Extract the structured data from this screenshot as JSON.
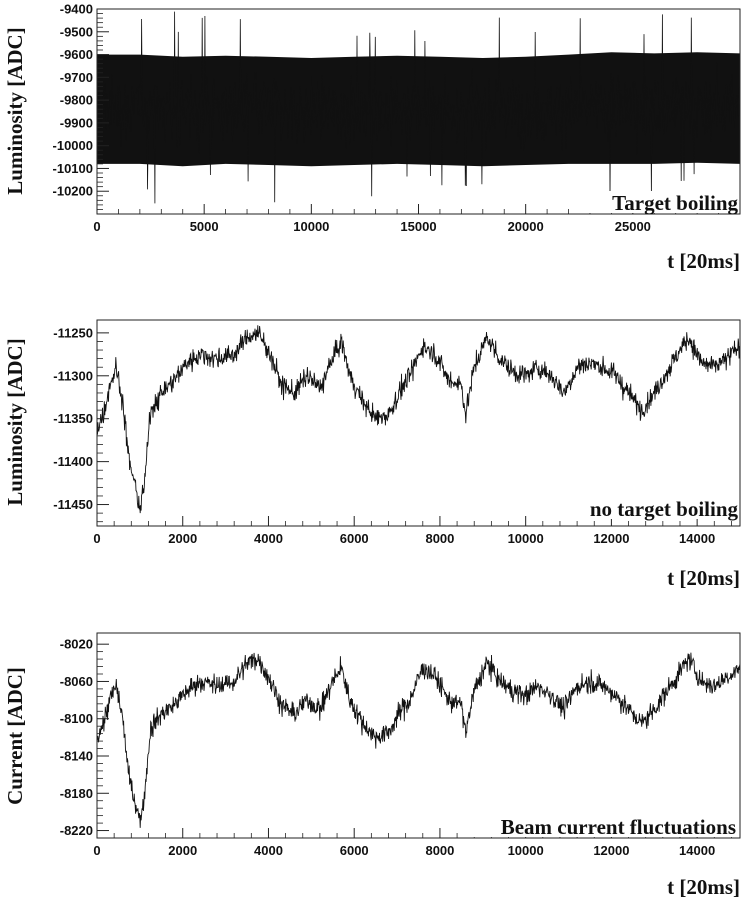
{
  "chart_data": [
    {
      "type": "line",
      "ylabel": "Luminosity [ADC]",
      "xlabel": "t [20ms]",
      "annotation": "Target boiling",
      "xlim": [
        0,
        30000
      ],
      "ylim": [
        -10300,
        -9400
      ],
      "xticks": [
        0,
        5000,
        10000,
        15000,
        20000,
        25000
      ],
      "xtick_labels": [
        "0",
        "5000",
        "10000",
        "15000",
        "20000",
        "25000"
      ],
      "yticks": [
        -9400,
        -9500,
        -9600,
        -9700,
        -9800,
        -9900,
        -10000,
        -10100,
        -10200
      ],
      "ytick_labels": [
        "-9400",
        "-9500",
        "-9600",
        "-9700",
        "-9800",
        "-9900",
        "-10000",
        "-10100",
        "-10200"
      ],
      "series": [
        {
          "x": [
            0,
            2000,
            4000,
            6000,
            8000,
            10000,
            12000,
            14000,
            16000,
            18000,
            20000,
            22000,
            24000,
            26000,
            28000,
            30000
          ],
          "mean": [
            -9830,
            -9835,
            -9840,
            -9835,
            -9840,
            -9845,
            -9840,
            -9835,
            -9840,
            -9845,
            -9840,
            -9835,
            -9830,
            -9835,
            -9830,
            -9835
          ],
          "band_low": [
            -10080,
            -10080,
            -10090,
            -10080,
            -10085,
            -10090,
            -10085,
            -10080,
            -10085,
            -10090,
            -10085,
            -10080,
            -10080,
            -10080,
            -10075,
            -10080
          ],
          "band_high": [
            -9600,
            -9600,
            -9610,
            -9605,
            -9610,
            -9615,
            -9610,
            -9605,
            -9610,
            -9615,
            -9610,
            -9600,
            -9590,
            -9595,
            -9590,
            -9595
          ]
        }
      ]
    },
    {
      "type": "line",
      "ylabel": "Luminosity [ADC]",
      "xlabel": "t [20ms]",
      "annotation": "no target boiling",
      "xlim": [
        0,
        15000
      ],
      "ylim": [
        -11475,
        -11235
      ],
      "xticks": [
        0,
        2000,
        4000,
        6000,
        8000,
        10000,
        12000,
        14000
      ],
      "xtick_labels": [
        "0",
        "2000",
        "4000",
        "6000",
        "8000",
        "10000",
        "12000",
        "14000"
      ],
      "yticks": [
        -11250,
        -11300,
        -11350,
        -11400,
        -11450
      ],
      "ytick_labels": [
        "-11250",
        "-11300",
        "-11350",
        "-11400",
        "-11450"
      ],
      "series": [
        {
          "x": [
            0,
            150,
            300,
            450,
            600,
            750,
            900,
            1000,
            1100,
            1250,
            1500,
            1800,
            2100,
            2400,
            2800,
            3200,
            3500,
            3750,
            4000,
            4300,
            4600,
            4900,
            5200,
            5500,
            5700,
            5900,
            6200,
            6500,
            6800,
            7100,
            7300,
            7600,
            7900,
            8200,
            8500,
            8600,
            8800,
            9100,
            9400,
            9700,
            10000,
            10300,
            10600,
            10900,
            11200,
            11500,
            11800,
            12100,
            12400,
            12700,
            13000,
            13300,
            13600,
            13800,
            14100,
            14400,
            14700,
            15000
          ],
          "values": [
            -11360,
            -11345,
            -11310,
            -11290,
            -11330,
            -11400,
            -11430,
            -11455,
            -11430,
            -11340,
            -11320,
            -11305,
            -11285,
            -11275,
            -11280,
            -11275,
            -11255,
            -11250,
            -11270,
            -11310,
            -11320,
            -11300,
            -11315,
            -11280,
            -11260,
            -11300,
            -11330,
            -11350,
            -11345,
            -11315,
            -11300,
            -11265,
            -11275,
            -11305,
            -11310,
            -11345,
            -11290,
            -11255,
            -11280,
            -11295,
            -11300,
            -11290,
            -11300,
            -11320,
            -11290,
            -11285,
            -11290,
            -11300,
            -11320,
            -11340,
            -11320,
            -11295,
            -11270,
            -11255,
            -11285,
            -11290,
            -11280,
            -11265
          ]
        }
      ]
    },
    {
      "type": "line",
      "ylabel": "Current [ADC]",
      "xlabel": "t [20ms]",
      "annotation": "Beam current fluctuations",
      "xlim": [
        0,
        15000
      ],
      "ylim": [
        -8228,
        -8008
      ],
      "xticks": [
        0,
        2000,
        4000,
        6000,
        8000,
        10000,
        12000,
        14000
      ],
      "xtick_labels": [
        "0",
        "2000",
        "4000",
        "6000",
        "8000",
        "10000",
        "12000",
        "14000"
      ],
      "yticks": [
        -8020,
        -8060,
        -8100,
        -8140,
        -8180,
        -8220
      ],
      "ytick_labels": [
        "-8020",
        "-8060",
        "-8100",
        "-8140",
        "-8180",
        "-8220"
      ],
      "series": [
        {
          "x": [
            0,
            150,
            300,
            450,
            600,
            750,
            900,
            1000,
            1100,
            1250,
            1500,
            1800,
            2100,
            2400,
            2800,
            3200,
            3500,
            3750,
            4000,
            4300,
            4600,
            4900,
            5200,
            5500,
            5700,
            5900,
            6200,
            6500,
            6800,
            7100,
            7300,
            7600,
            7900,
            8200,
            8500,
            8600,
            8800,
            9100,
            9400,
            9700,
            10000,
            10300,
            10600,
            10900,
            11200,
            11500,
            11800,
            12100,
            12400,
            12700,
            13000,
            13300,
            13600,
            13800,
            14100,
            14400,
            14700,
            15000
          ],
          "values": [
            -8120,
            -8105,
            -8080,
            -8065,
            -8100,
            -8165,
            -8190,
            -8210,
            -8185,
            -8110,
            -8095,
            -8085,
            -8070,
            -8060,
            -8065,
            -8060,
            -8040,
            -8035,
            -8055,
            -8085,
            -8095,
            -8080,
            -8090,
            -8060,
            -8045,
            -8080,
            -8105,
            -8120,
            -8115,
            -8090,
            -8080,
            -8045,
            -8055,
            -8080,
            -8085,
            -8115,
            -8070,
            -8040,
            -8060,
            -8070,
            -8075,
            -8065,
            -8075,
            -8090,
            -8065,
            -8060,
            -8065,
            -8075,
            -8090,
            -8105,
            -8090,
            -8070,
            -8050,
            -8035,
            -8060,
            -8065,
            -8055,
            -8045
          ]
        }
      ]
    }
  ]
}
